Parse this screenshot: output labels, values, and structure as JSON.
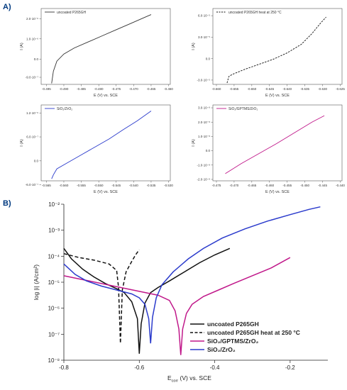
{
  "labels": {
    "a": "A)",
    "b": "B)"
  },
  "chart_data": [
    {
      "type": "line",
      "panel": "A-1",
      "legend": "uncoated P265GH",
      "xlabel": "E (V) vs. SCE",
      "ylabel": "I (A)",
      "color": "#333333",
      "dash": false,
      "xlim": [
        -0.4965,
        -0.4595
      ],
      "ylim": [
        -1.25e-06,
        2.5e-06
      ],
      "xticks": [
        "-0.495",
        "-0.490",
        "-0.485",
        "-0.480",
        "-0.475",
        "-0.470",
        "-0.465",
        "-0.460"
      ],
      "xtick_values": [
        -0.495,
        -0.49,
        -0.485,
        -0.48,
        -0.475,
        -0.47,
        -0.465,
        -0.46
      ],
      "yticks": [
        "2.0·10⁻⁶",
        "1.0·10⁻⁶",
        "0.0",
        "-9.0·10⁻⁷"
      ],
      "ytick_values": [
        2e-06,
        1e-06,
        0.0,
        -9e-07
      ],
      "x": [
        -0.4935,
        -0.493,
        -0.492,
        -0.49,
        -0.487,
        -0.483,
        -0.479,
        -0.475,
        -0.471,
        -0.467,
        -0.465
      ],
      "y": [
        -1.2e-06,
        -6e-07,
        -1e-07,
        2.5e-07,
        5.5e-07,
        8.5e-07,
        1.15e-06,
        1.45e-06,
        1.75e-06,
        2.05e-06,
        2.2e-06
      ]
    },
    {
      "type": "line",
      "panel": "A-2",
      "legend": "uncoated P265GH heat at 250 °C",
      "xlabel": "E (V) vs. SCE",
      "ylabel": "I (A)",
      "color": "#111111",
      "dash": true,
      "xlim": [
        -0.661,
        -0.6245
      ],
      "ylim": [
        -3.6e-05,
        7e-05
      ],
      "xticks": [
        "-0.660",
        "-0.655",
        "-0.650",
        "-0.645",
        "-0.640",
        "-0.635",
        "-0.630",
        "-0.625"
      ],
      "xtick_values": [
        -0.66,
        -0.655,
        -0.65,
        -0.645,
        -0.64,
        -0.635,
        -0.63,
        -0.625
      ],
      "yticks": [
        "6.0·10⁻⁵",
        "3.0·10⁻⁵",
        "0.0",
        "-3.0·10⁻⁵"
      ],
      "ytick_values": [
        6e-05,
        3e-05,
        0.0,
        -3e-05
      ],
      "x": [
        -0.657,
        -0.6565,
        -0.6555,
        -0.652,
        -0.648,
        -0.644,
        -0.64,
        -0.636,
        -0.633,
        -0.6305,
        -0.629
      ],
      "y": [
        -3.4e-05,
        -2.5e-05,
        -2.2e-05,
        -1.5e-05,
        -8e-06,
        -1e-06,
        8e-06,
        2e-05,
        3.5e-05,
        5e-05,
        5.8e-05
      ]
    },
    {
      "type": "line",
      "panel": "A-3",
      "legend": "SiO₂/ZrO₂",
      "xlabel": "E (V) vs. SCE",
      "ylabel": "I (A)",
      "color": "#2b3bcc",
      "dash": false,
      "xlim": [
        -0.5665,
        -0.5295
      ],
      "ylim": [
        -5e-07,
        1.4e-06
      ],
      "xticks": [
        "-0.565",
        "-0.560",
        "-0.555",
        "-0.550",
        "-0.545",
        "-0.540",
        "-0.535",
        "-0.530"
      ],
      "xtick_values": [
        -0.565,
        -0.56,
        -0.555,
        -0.55,
        -0.545,
        -0.54,
        -0.535,
        -0.53
      ],
      "yticks": [
        "1.2·10⁻⁶",
        "6.0·10⁻⁷",
        "0.0",
        "-6.0·10⁻⁷"
      ],
      "ytick_values": [
        1.2e-06,
        6e-07,
        0.0,
        -6e-07
      ],
      "x": [
        -0.5635,
        -0.563,
        -0.562,
        -0.559,
        -0.555,
        -0.551,
        -0.547,
        -0.543,
        -0.539,
        -0.535
      ],
      "y": [
        -4.5e-07,
        -3.5e-07,
        -2e-07,
        -5e-08,
        1.5e-07,
        3.5e-07,
        5.5e-07,
        7.8e-07,
        1e-06,
        1.25e-06
      ]
    },
    {
      "type": "line",
      "panel": "A-4",
      "legend": "SiO₂/GPTMS/ZrO₂",
      "xlabel": "E (V) vs. SCE",
      "ylabel": "I (A)",
      "color": "#c0188a",
      "dash": false,
      "xlim": [
        -0.476,
        -0.4395
      ],
      "ylim": [
        -2.1e-08,
        3.2e-08
      ],
      "xticks": [
        "-0.475",
        "-0.470",
        "-0.465",
        "-0.460",
        "-0.455",
        "-0.450",
        "-0.445",
        "-0.440"
      ],
      "xtick_values": [
        -0.475,
        -0.47,
        -0.465,
        -0.46,
        -0.455,
        -0.45,
        -0.445,
        -0.44
      ],
      "yticks": [
        "3.0·10⁻⁸",
        "2.0·10⁻⁸",
        "1.0·10⁻⁸",
        "0.0",
        "-1.0·10⁻⁸",
        "-2.0·10⁻⁸"
      ],
      "ytick_values": [
        3e-08,
        2e-08,
        1e-08,
        0.0,
        -1e-08,
        -2e-08
      ],
      "x": [
        -0.4725,
        -0.468,
        -0.463,
        -0.458,
        -0.453,
        -0.448,
        -0.4445
      ],
      "y": [
        -1.6e-08,
        -9e-09,
        -2e-09,
        5e-09,
        1.25e-08,
        2e-08,
        2.45e-08
      ]
    },
    {
      "type": "line",
      "panel": "B",
      "xlabel_main": "E",
      "xlabel_sub": "corr",
      "xlabel_rest": " (V) vs. SCE",
      "ylabel": "log |i| (A/cm²)",
      "xlim": [
        -0.8,
        -0.1
      ],
      "log_ylim": [
        -8,
        -2
      ],
      "xticks": [
        "-0.8",
        "-0.6",
        "-0.4",
        "-0.2"
      ],
      "xtick_values": [
        -0.8,
        -0.6,
        -0.4,
        -0.2
      ],
      "yticks": [
        "10⁻⁸",
        "10⁻⁷",
        "10⁻⁶",
        "10⁻⁵",
        "10⁻⁴",
        "10⁻³",
        "10⁻²"
      ],
      "ytick_values": [
        -8,
        -7,
        -6,
        -5,
        -4,
        -3,
        -2
      ],
      "series": [
        {
          "name": "uncoated P265GH",
          "color": "#111111",
          "dash": false,
          "x": [
            -0.8,
            -0.78,
            -0.75,
            -0.72,
            -0.69,
            -0.66,
            -0.64,
            -0.62,
            -0.605,
            -0.6,
            -0.595,
            -0.585,
            -0.57,
            -0.55,
            -0.52,
            -0.48,
            -0.44,
            -0.4,
            -0.36
          ],
          "y": [
            -3.7,
            -4.1,
            -4.5,
            -4.8,
            -5.05,
            -5.25,
            -5.4,
            -5.75,
            -6.4,
            -7.75,
            -6.6,
            -5.8,
            -5.4,
            -5.2,
            -4.95,
            -4.6,
            -4.25,
            -3.95,
            -3.7
          ]
        },
        {
          "name": "uncoated P265GH heat at 250 °C",
          "color": "#111111",
          "dash": true,
          "x": [
            -0.8,
            -0.76,
            -0.72,
            -0.68,
            -0.66,
            -0.655,
            -0.65,
            -0.645,
            -0.635,
            -0.62,
            -0.61,
            -0.6
          ],
          "y": [
            -3.9,
            -4.05,
            -4.15,
            -4.3,
            -4.55,
            -5.2,
            -7.35,
            -5.3,
            -4.6,
            -4.2,
            -3.95,
            -3.75
          ]
        },
        {
          "name": "SiO₂/GPTMS/ZrO₂",
          "color": "#c0188a",
          "dash": false,
          "x": [
            -0.8,
            -0.75,
            -0.7,
            -0.65,
            -0.6,
            -0.55,
            -0.52,
            -0.505,
            -0.495,
            -0.49,
            -0.485,
            -0.475,
            -0.46,
            -0.43,
            -0.39,
            -0.35,
            -0.3,
            -0.25,
            -0.2
          ],
          "y": [
            -4.75,
            -4.9,
            -5.05,
            -5.2,
            -5.35,
            -5.5,
            -5.7,
            -6.1,
            -6.8,
            -7.8,
            -6.8,
            -6.2,
            -5.85,
            -5.55,
            -5.3,
            -5.05,
            -4.75,
            -4.45,
            -4.05
          ]
        },
        {
          "name": "SiO₂/ZrO₂",
          "color": "#2b3bcc",
          "dash": false,
          "x": [
            -0.8,
            -0.77,
            -0.74,
            -0.7,
            -0.66,
            -0.62,
            -0.6,
            -0.585,
            -0.575,
            -0.57,
            -0.565,
            -0.555,
            -0.54,
            -0.51,
            -0.47,
            -0.43,
            -0.38,
            -0.32,
            -0.26,
            -0.2,
            -0.15,
            -0.12
          ],
          "y": [
            -4.3,
            -4.7,
            -4.95,
            -5.15,
            -5.3,
            -5.45,
            -5.6,
            -5.85,
            -6.4,
            -7.35,
            -6.35,
            -5.6,
            -5.1,
            -4.6,
            -4.1,
            -3.7,
            -3.3,
            -2.95,
            -2.65,
            -2.4,
            -2.2,
            -2.1
          ]
        }
      ]
    }
  ]
}
